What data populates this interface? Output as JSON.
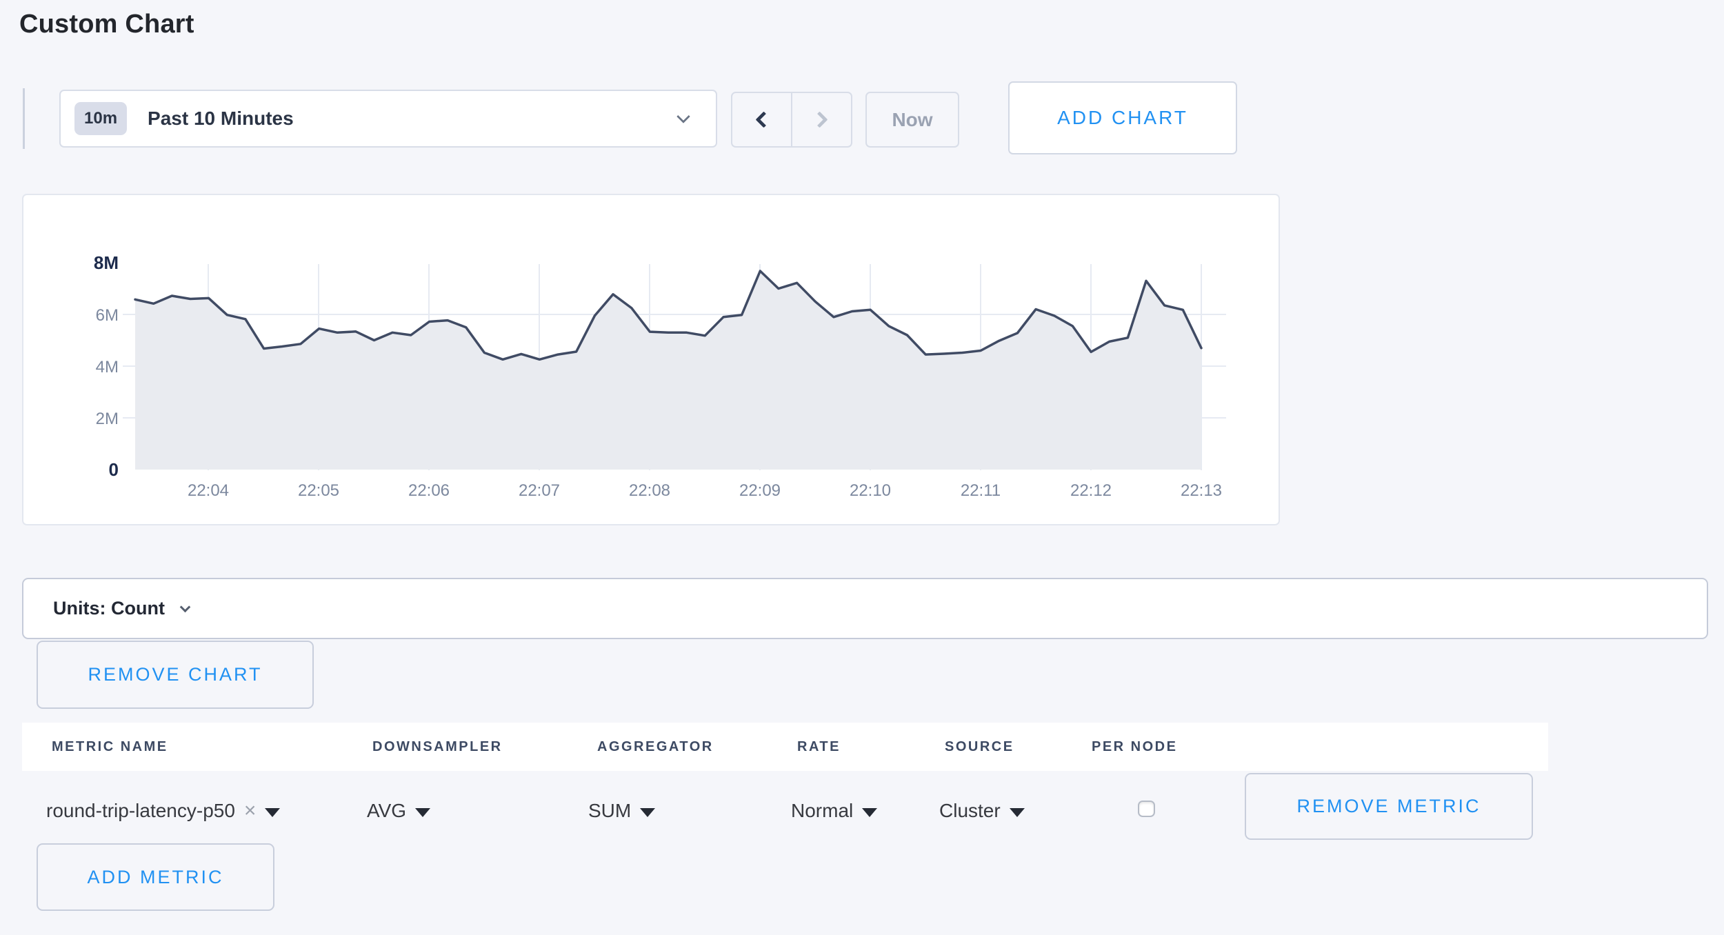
{
  "page": {
    "title": "Custom Chart"
  },
  "toolbar": {
    "time_badge": "10m",
    "time_label": "Past 10 Minutes",
    "now_label": "Now",
    "add_chart_label": "ADD CHART"
  },
  "chart_data": {
    "type": "area",
    "title": "",
    "xlabel": "",
    "ylabel": "",
    "unit": "Count",
    "ylim": [
      0,
      8000000
    ],
    "grid": true,
    "legend": "none",
    "x_start": "22:03:20",
    "x_end": "22:13:00",
    "sample_interval_seconds": 10,
    "x_tick_labels": [
      "22:04",
      "22:05",
      "22:06",
      "22:07",
      "22:08",
      "22:09",
      "22:10",
      "22:11",
      "22:12",
      "22:13"
    ],
    "y_tick_labels": [
      "0",
      "2M",
      "4M",
      "6M",
      "8M"
    ],
    "y_tick_values_millions": [
      0,
      2,
      4,
      6,
      8
    ],
    "series": [
      {
        "name": "round-trip-latency-p50",
        "values_millions": [
          6.58,
          6.42,
          6.72,
          6.6,
          6.63,
          5.98,
          5.82,
          4.68,
          4.76,
          4.86,
          5.45,
          5.3,
          5.34,
          5.0,
          5.3,
          5.2,
          5.72,
          5.77,
          5.5,
          4.52,
          4.26,
          4.47,
          4.26,
          4.45,
          4.56,
          5.95,
          6.78,
          6.25,
          5.33,
          5.3,
          5.3,
          5.18,
          5.9,
          5.98,
          7.68,
          7.0,
          7.22,
          6.5,
          5.9,
          6.12,
          6.18,
          5.55,
          5.2,
          4.45,
          4.48,
          4.52,
          4.6,
          4.98,
          5.28,
          6.2,
          5.95,
          5.55,
          4.55,
          4.95,
          5.1,
          7.3,
          6.35,
          6.18,
          4.7
        ]
      }
    ]
  },
  "units_bar": {
    "label": "Units: Count"
  },
  "chart_actions": {
    "remove_chart_label": "REMOVE CHART"
  },
  "metrics_table": {
    "headers": [
      "METRIC NAME",
      "DOWNSAMPLER",
      "AGGREGATOR",
      "RATE",
      "SOURCE",
      "PER NODE"
    ],
    "rows": [
      {
        "metric_name": "round-trip-latency-p50",
        "clear_icon": "×",
        "downsampler": "AVG",
        "aggregator": "SUM",
        "rate": "Normal",
        "source": "Cluster",
        "per_node_checked": false,
        "remove_label": "REMOVE METRIC"
      }
    ],
    "add_metric_label": "ADD METRIC"
  },
  "colors": {
    "accent_blue": "#2191f2",
    "chart_line": "#404b64",
    "chart_fill": "#e9ebf0",
    "grid": "#e6eaf2",
    "axis_label": "#7c889e",
    "axis_label_strong": "#1d2b4c",
    "page_bg": "#f5f6fa"
  }
}
